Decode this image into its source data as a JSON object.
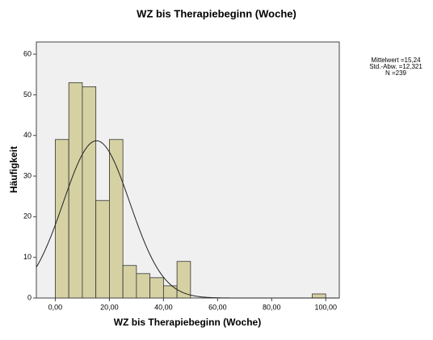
{
  "chart_data": {
    "type": "histogram",
    "title": "WZ bis Therapiebeginn (Woche)",
    "xlabel": "WZ bis Therapiebeginn (Woche)",
    "ylabel": "Häufigkeit",
    "bins": [
      0,
      5,
      10,
      15,
      20,
      25,
      30,
      35,
      40,
      45,
      50,
      55,
      60,
      65,
      70,
      75,
      80,
      85,
      90,
      95,
      100
    ],
    "counts": [
      39,
      53,
      52,
      24,
      39,
      8,
      6,
      5,
      3,
      9,
      0,
      0,
      0,
      0,
      0,
      0,
      0,
      0,
      0,
      1
    ],
    "color": "#d6d1a3",
    "xlim": [
      -7,
      105
    ],
    "ylim": [
      0,
      63
    ],
    "xticks": [
      {
        "value": 0,
        "label": "0,00"
      },
      {
        "value": 20,
        "label": "20,00"
      },
      {
        "value": 40,
        "label": "40,00"
      },
      {
        "value": 60,
        "label": "60,00"
      },
      {
        "value": 80,
        "label": "80,00"
      },
      {
        "value": 100,
        "label": "100,00"
      }
    ],
    "yticks": [
      0,
      10,
      20,
      30,
      40,
      50,
      60
    ],
    "stats": {
      "mean": {
        "value": 15.24,
        "label": "Mittelwert =15,24"
      },
      "sd": {
        "value": 12.321,
        "label": "Std.-Abw. =12,321"
      },
      "n": {
        "value": 239,
        "label": "N =239"
      }
    }
  }
}
